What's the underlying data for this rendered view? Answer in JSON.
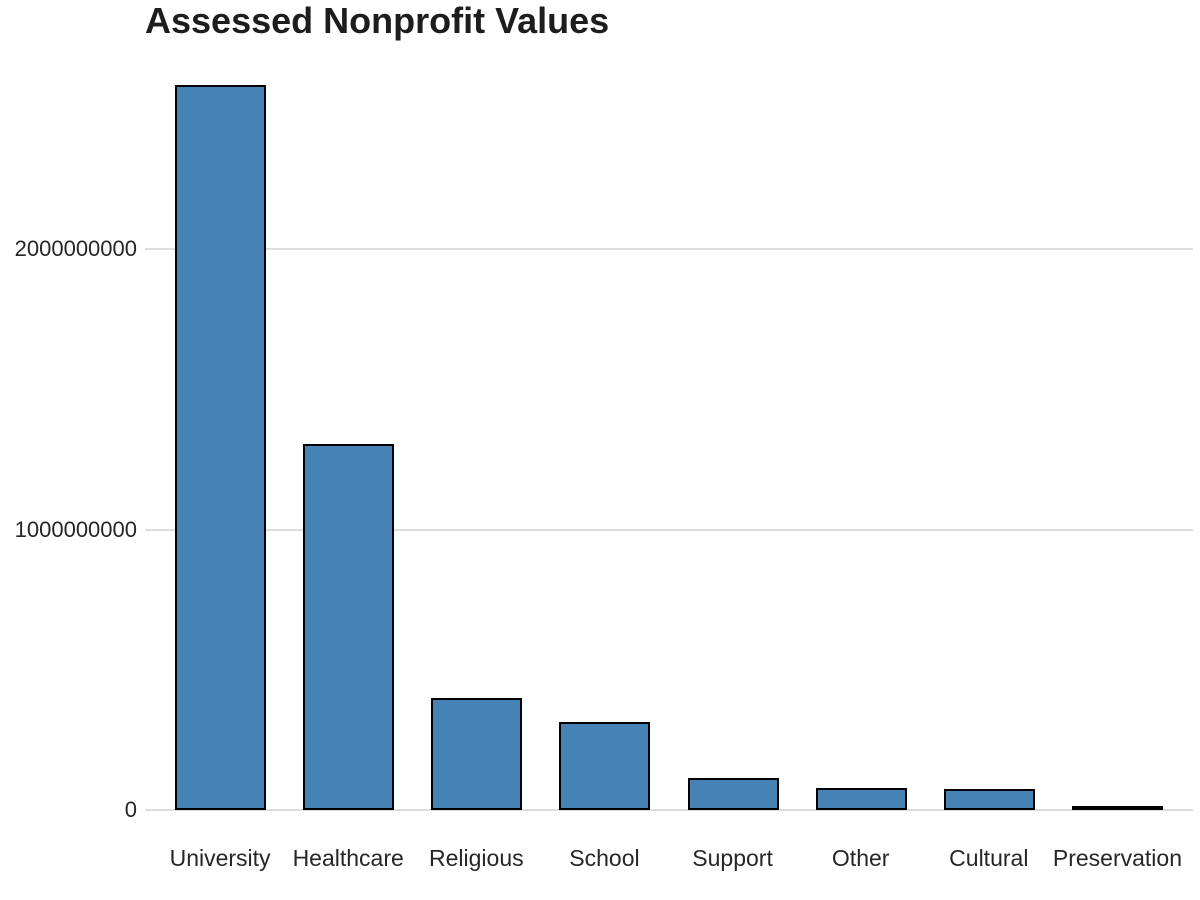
{
  "title": "Assessed Nonprofit Values",
  "colors": {
    "background": "#ffffff",
    "title_text": "#1d1d1d",
    "axis_text": "#262626",
    "gridline": "#dddddd",
    "bar_fill": "#4682b4",
    "bar_border": "#000000"
  },
  "chart_data": {
    "type": "bar",
    "title": "Assessed Nonprofit Values",
    "xlabel": "",
    "ylabel": "",
    "categories": [
      "University",
      "Healthcare",
      "Religious",
      "School",
      "Support",
      "Other",
      "Cultural",
      "Preservation"
    ],
    "values": [
      2585000000,
      1305000000,
      400000000,
      314000000,
      114000000,
      78000000,
      75000000,
      10000000
    ],
    "ylim": [
      0,
      2685000000
    ],
    "yticks": [
      0,
      1000000000,
      2000000000
    ],
    "ytick_labels": [
      "0",
      "1000000000",
      "2000000000"
    ],
    "grid": true,
    "legend": false
  }
}
